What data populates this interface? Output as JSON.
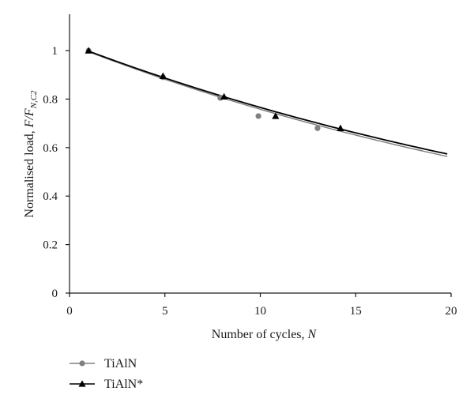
{
  "chart_data": {
    "type": "scatter",
    "xlabel": "Number of cycles, ",
    "xlabel_var": "N",
    "ylabel": "Normalised load, ",
    "ylabel_var": "F/F",
    "ylabel_sub": "N,C2",
    "xlim": [
      0,
      20
    ],
    "ylim": [
      0,
      1.15
    ],
    "xticks": [
      "0",
      "5",
      "10",
      "15",
      "20"
    ],
    "yticks": [
      "0",
      "0.2",
      "0.4",
      "0.6",
      "0.8",
      "1"
    ],
    "legend_position": "bottom-left",
    "series": [
      {
        "name": "TiAlN",
        "color": "#808080",
        "marker": "circle",
        "points": [
          {
            "x": 1,
            "y": 1.0
          },
          {
            "x": 4.9,
            "y": 0.89
          },
          {
            "x": 7.9,
            "y": 0.805
          },
          {
            "x": 9.9,
            "y": 0.73
          },
          {
            "x": 13,
            "y": 0.68
          }
        ],
        "fit": {
          "a": 1.0261,
          "b": 0.03028,
          "x_range": [
            1,
            19.8
          ]
        }
      },
      {
        "name": "TiAlN*",
        "color": "#000000",
        "marker": "triangle",
        "points": [
          {
            "x": 1,
            "y": 1.0
          },
          {
            "x": 4.9,
            "y": 0.895
          },
          {
            "x": 8.1,
            "y": 0.81
          },
          {
            "x": 10.8,
            "y": 0.73
          },
          {
            "x": 14.2,
            "y": 0.68
          }
        ],
        "fit": {
          "a": 1.0276,
          "b": 0.02944,
          "x_range": [
            1,
            19.8
          ]
        }
      }
    ]
  }
}
